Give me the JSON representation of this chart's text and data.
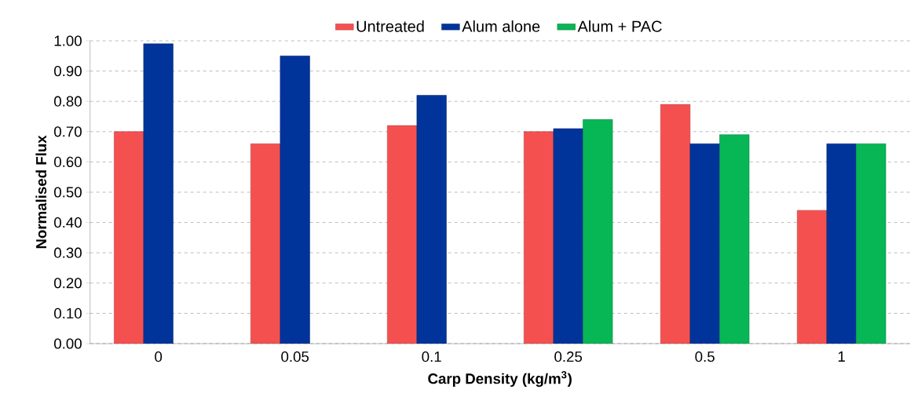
{
  "chart_data": {
    "type": "bar",
    "xlabel": "Carp Density (kg/m$^{3}$)",
    "ylabel": "Normalised Flux",
    "categories": [
      "0",
      "0.05",
      "0.1",
      "0.25",
      "0.5",
      "1"
    ],
    "series": [
      {
        "name": "Untreated",
        "color": "#f55050",
        "values": [
          0.7,
          0.66,
          0.72,
          0.7,
          0.79,
          0.44
        ]
      },
      {
        "name": "Alum alone",
        "color": "#00349a",
        "values": [
          0.99,
          0.95,
          0.82,
          0.71,
          0.66,
          0.66
        ]
      },
      {
        "name": "Alum + PAC",
        "color": "#07b655",
        "values": [
          null,
          null,
          null,
          0.74,
          0.69,
          0.66
        ]
      }
    ],
    "ylim": [
      0,
      1.0
    ],
    "yticks": [
      {
        "value": 0,
        "label": "0.00"
      },
      {
        "value": 0.1,
        "label": "0.10"
      },
      {
        "value": 0.2,
        "label": "0.20"
      },
      {
        "value": 0.3,
        "label": "0.30"
      },
      {
        "value": 0.4,
        "label": "0.40"
      },
      {
        "value": 0.5,
        "label": "0.50"
      },
      {
        "value": 0.6,
        "label": "0.60"
      },
      {
        "value": 0.7,
        "label": "0.70"
      },
      {
        "value": 0.8,
        "label": "0.80"
      },
      {
        "value": 0.9,
        "label": "0.90"
      },
      {
        "value": 1.0,
        "label": "1.00"
      }
    ],
    "grid": "y",
    "legend": "top"
  }
}
